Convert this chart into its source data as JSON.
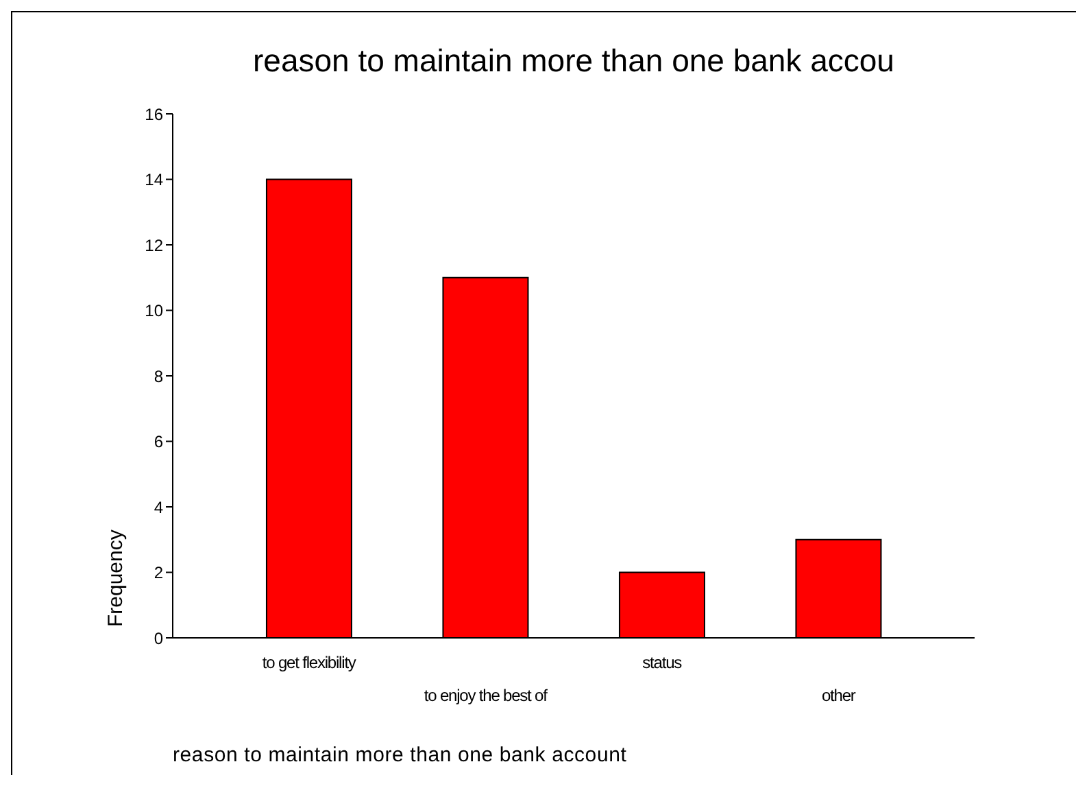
{
  "chart_data": {
    "type": "bar",
    "title": "reason to maintain more than one bank accou",
    "xlabel": "reason to maintain more than one bank account",
    "ylabel": "Frequency",
    "categories": [
      "to get flexibility",
      "to enjoy the best of",
      "status",
      "other"
    ],
    "values": [
      14,
      11,
      2,
      3
    ],
    "color": "#ff0000",
    "ylim": [
      0,
      16
    ],
    "yticks": [
      0,
      2,
      4,
      6,
      8,
      10,
      12,
      14,
      16
    ],
    "grid": false,
    "legend": false
  }
}
